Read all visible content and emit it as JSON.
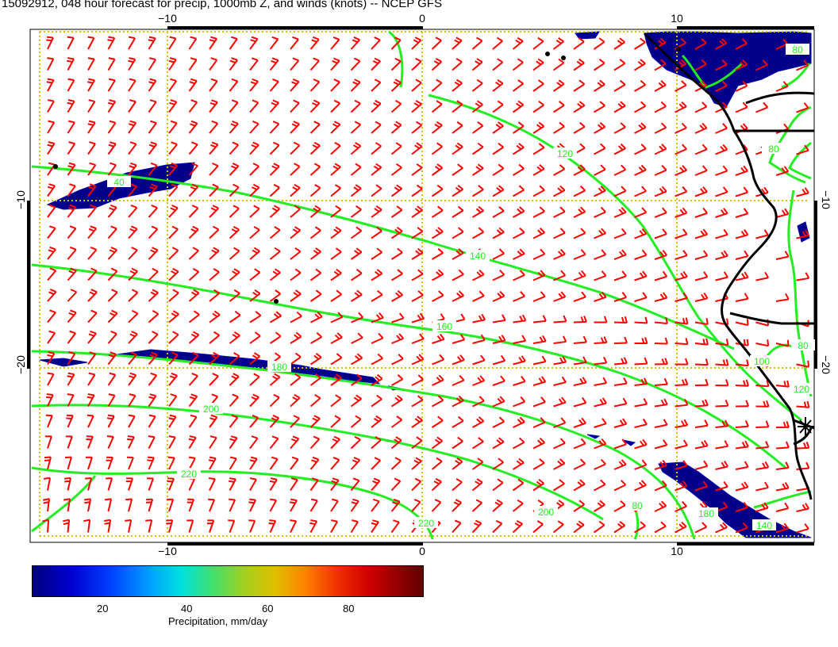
{
  "title": "15092912, 048 hour forecast for precip, 1000mb Z, and winds (knots) -- NCEP GFS",
  "map": {
    "lon_ticks": [
      "−10",
      "0",
      "10"
    ],
    "lat_ticks": [
      "−10",
      "−20"
    ],
    "contour_labels": [
      "40",
      "120",
      "140",
      "160",
      "180",
      "200",
      "200",
      "220",
      "220",
      "80",
      "80",
      "100",
      "120",
      "80",
      "140",
      "80",
      "180"
    ],
    "colors": {
      "contour": "#22ee22",
      "barb": "#ff0000",
      "precip": "#00008b",
      "coast": "#000000",
      "grid": "#d4c000"
    }
  },
  "colorbar": {
    "tick_labels": [
      "20",
      "40",
      "60",
      "80"
    ],
    "title": "Precipitation, mm/day"
  }
}
